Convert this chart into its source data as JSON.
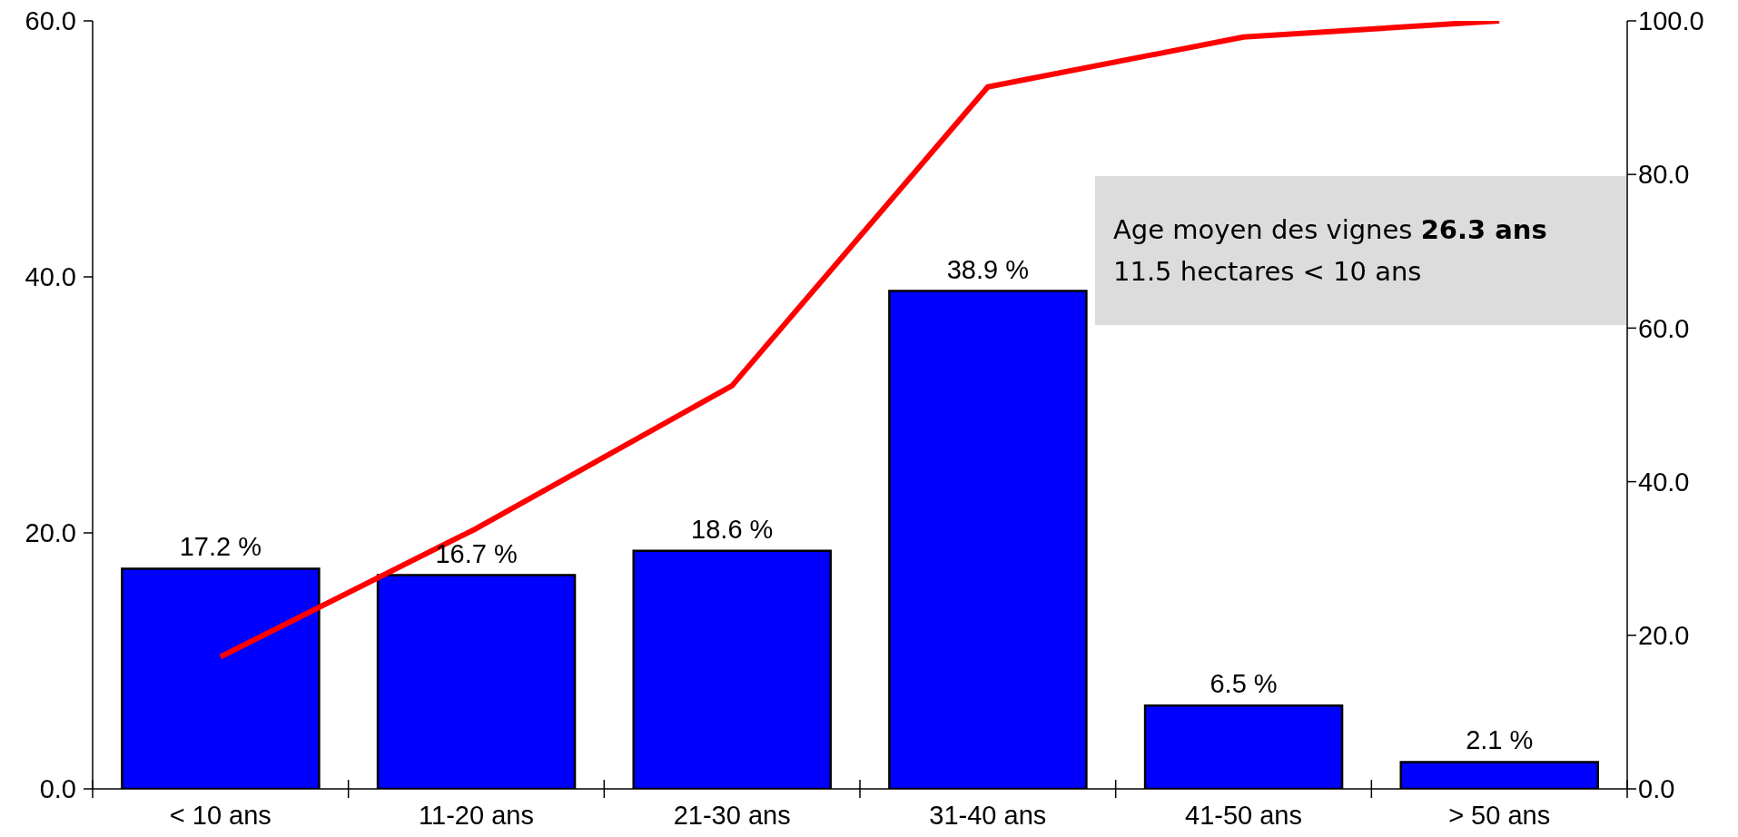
{
  "chart_data": {
    "type": "bar",
    "categories": [
      "< 10 ans",
      "11-20 ans",
      "21-30 ans",
      "31-40 ans",
      "41-50 ans",
      "> 50 ans"
    ],
    "series": [
      {
        "color": "#0000ff",
        "values": [
          17.2,
          16.7,
          18.6,
          38.9,
          6.5,
          2.1
        ],
        "value_labels": [
          "17.2 %",
          "16.7 %",
          "18.6 %",
          "38.9 %",
          "6.5 %",
          "2.1 %"
        ]
      },
      {
        "type": "line",
        "axis": "y2",
        "color": "#ff0000",
        "values": [
          17.2,
          33.9,
          52.5,
          91.4,
          97.9,
          100.0
        ]
      }
    ],
    "ylim": [
      0,
      60
    ],
    "yticks": [
      {
        "value": 0,
        "label": "0.0"
      },
      {
        "value": 20,
        "label": "20.0"
      },
      {
        "value": 40,
        "label": "40.0"
      },
      {
        "value": 60,
        "label": "60.0"
      }
    ],
    "y2lim": [
      0,
      100
    ],
    "y2ticks": [
      {
        "value": 0,
        "label": "0.0"
      },
      {
        "value": 20,
        "label": "20.0"
      },
      {
        "value": 40,
        "label": "40.0"
      },
      {
        "value": 60,
        "label": "60.0"
      },
      {
        "value": 80,
        "label": "80.0"
      },
      {
        "value": 100,
        "label": "100.0"
      }
    ],
    "annotations": [
      "Age moyen des vignes",
      "26.3 ans",
      "11.5 hectares < 10 ans"
    ],
    "legend": false,
    "grid": false
  }
}
